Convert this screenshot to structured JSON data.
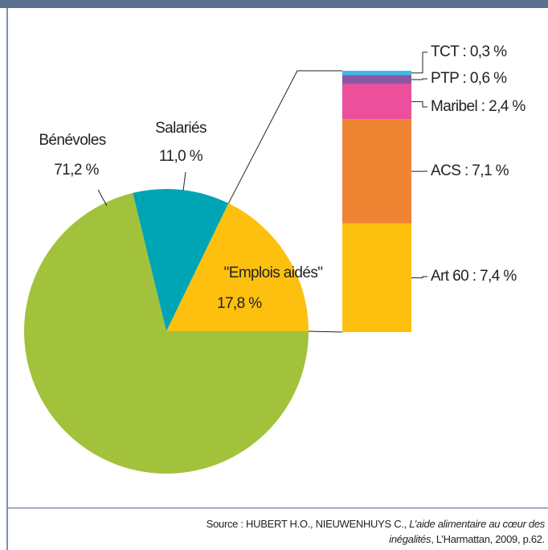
{
  "chart_data": {
    "type": "pie-of-bar",
    "pie": {
      "categories": [
        "Bénévoles",
        "Salariés",
        "\"Emplois aidés\""
      ],
      "values": [
        71.2,
        11.0,
        17.8
      ],
      "value_labels": [
        "71,2 %",
        "11,0 %",
        "17,8 %"
      ],
      "colors": [
        "#a3c23c",
        "#00a5b5",
        "#fdc00f"
      ]
    },
    "bar": {
      "labels": [
        "Art 60 : 7,4 %",
        "ACS : 7,1 %",
        "Maribel : 2,4 %",
        "PTP : 0,6 %",
        "TCT : 0,3 %"
      ],
      "values": [
        7.4,
        7.1,
        2.4,
        0.6,
        0.3
      ],
      "colors": [
        "#fdc00f",
        "#ef8533",
        "#ec4f9c",
        "#8a57a3",
        "#3fb9e9"
      ]
    },
    "source": {
      "prefix": "Source : HUBERT H.O., NIEUWENHUYS C.,",
      "title": "L’aide alimentaire au cœur des inégalités",
      "suffix": ", L’Harmattan, 2009, p.62."
    }
  }
}
